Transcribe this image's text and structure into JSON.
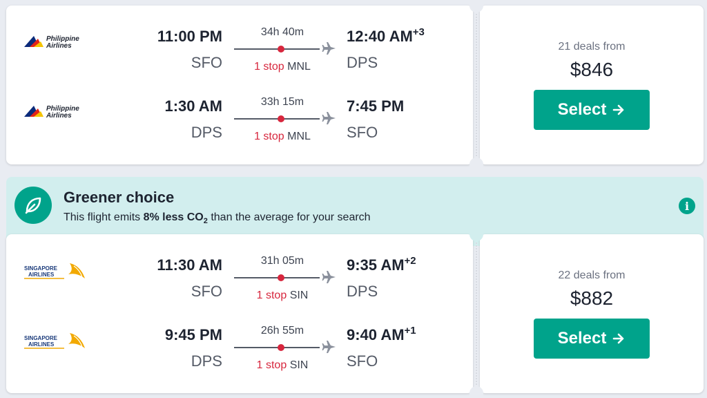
{
  "results": [
    {
      "legs": [
        {
          "airline": "Philippine Airlines",
          "airline_line1": "Philippine",
          "airline_line2": "Airlines",
          "dep_time": "11:00 PM",
          "dep_airport": "SFO",
          "duration": "34h 40m",
          "stops": "1 stop",
          "via": "MNL",
          "arr_time": "12:40 AM",
          "arr_offset": "+3",
          "arr_airport": "DPS"
        },
        {
          "airline": "Philippine Airlines",
          "airline_line1": "Philippine",
          "airline_line2": "Airlines",
          "dep_time": "1:30 AM",
          "dep_airport": "DPS",
          "duration": "33h 15m",
          "stops": "1 stop",
          "via": "MNL",
          "arr_time": "7:45 PM",
          "arr_offset": "",
          "arr_airport": "SFO"
        }
      ],
      "deals": "21 deals from",
      "price": "$846",
      "select_label": "Select"
    },
    {
      "legs": [
        {
          "airline": "Singapore Airlines",
          "airline_line1": "SINGAPORE",
          "airline_line2": "AIRLINES",
          "dep_time": "11:30 AM",
          "dep_airport": "SFO",
          "duration": "31h 05m",
          "stops": "1 stop",
          "via": "SIN",
          "arr_time": "9:35 AM",
          "arr_offset": "+2",
          "arr_airport": "DPS"
        },
        {
          "airline": "Singapore Airlines",
          "airline_line1": "SINGAPORE",
          "airline_line2": "AIRLINES",
          "dep_time": "9:45 PM",
          "dep_airport": "DPS",
          "duration": "26h 55m",
          "stops": "1 stop",
          "via": "SIN",
          "arr_time": "9:40 AM",
          "arr_offset": "+1",
          "arr_airport": "SFO"
        }
      ],
      "deals": "22 deals from",
      "price": "$882",
      "select_label": "Select"
    }
  ],
  "greener": {
    "title": "Greener choice",
    "desc_before": "This flight emits ",
    "desc_bold": "8% less CO",
    "desc_sub": "2",
    "desc_after": " than the average for your search"
  },
  "colors": {
    "accent": "#00a38b",
    "stop_red": "#d7263d",
    "banner_bg": "#d2eeee"
  },
  "icons": {
    "plane": "airplane-icon",
    "arrow": "arrow-right-icon",
    "leaf": "leaf-icon",
    "info": "info-icon"
  }
}
